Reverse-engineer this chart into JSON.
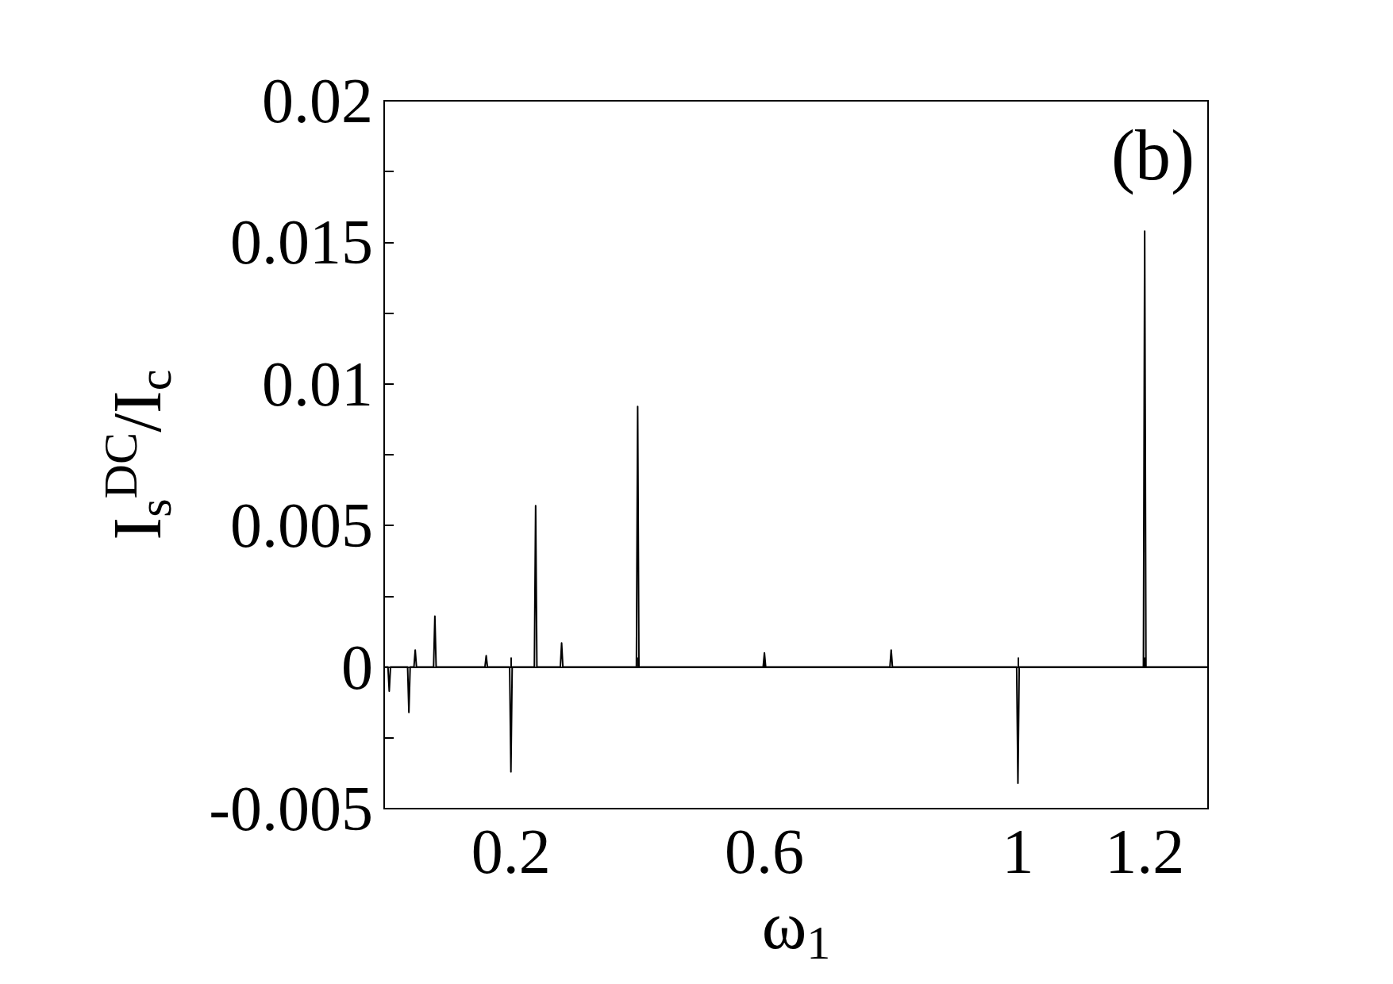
{
  "chart_data": {
    "type": "line",
    "xlabel": "ω$_{1}$",
    "ylabel": "I$_{s}$$^{DC}$/I$_{c}$",
    "annotations": [
      "(b)"
    ],
    "x": [
      0,
      0.006,
      0.008,
      0.01,
      0.037,
      0.039,
      0.041,
      0.047,
      0.049,
      0.051,
      0.078,
      0.08,
      0.082,
      0.159,
      0.161,
      0.163,
      0.198,
      0.2,
      0.202,
      0.237,
      0.239,
      0.241,
      0.278,
      0.28,
      0.282,
      0.398,
      0.4,
      0.402,
      0.598,
      0.6,
      0.602,
      0.798,
      0.8,
      0.802,
      0.998,
      1.0,
      1.002,
      1.198,
      1.2,
      1.202,
      1.3
    ],
    "values": [
      0,
      0,
      -0.00085,
      0,
      0,
      -0.0016,
      0,
      0,
      0.0006,
      0,
      0,
      0.0018,
      0,
      0,
      0.0004,
      0,
      0,
      -0.0037,
      0,
      0,
      0.0057,
      0,
      0,
      0.00085,
      0,
      0,
      0.0092,
      0,
      0,
      0.0005,
      0,
      0,
      0.0006,
      0,
      0,
      -0.0041,
      0,
      0,
      0.0154,
      0,
      0
    ],
    "color": "#000000",
    "marker": "none",
    "line_style": "solid",
    "xlim": [
      0,
      1.3
    ],
    "xticks": [
      0.2,
      {
        "value": 0.4,
        "label": null
      },
      0.6,
      1,
      1.2
    ],
    "ylim": [
      -0.005,
      0.02
    ],
    "yticks": [
      -0.005,
      {
        "value": -0.0025,
        "label": null
      },
      0,
      {
        "value": 0.0025,
        "label": null
      },
      0.005,
      {
        "value": 0.0075,
        "label": null
      },
      0.01,
      {
        "value": 0.0125,
        "label": null
      },
      0.015,
      {
        "value": 0.0175,
        "label": null
      },
      0.02
    ]
  }
}
